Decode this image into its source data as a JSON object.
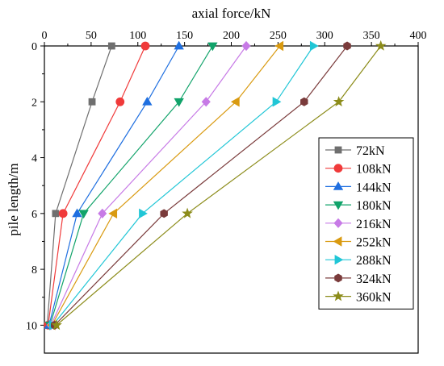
{
  "chart_data": {
    "type": "line",
    "title": "",
    "xlabel": "axial force/kN",
    "ylabel": "pile length/m",
    "x_axis_position": "top",
    "y_inverted": true,
    "xlim": [
      0,
      400
    ],
    "ylim": [
      0,
      11
    ],
    "xticks": [
      0,
      50,
      100,
      150,
      200,
      250,
      300,
      350,
      400
    ],
    "yticks": [
      0,
      2,
      4,
      6,
      8,
      10
    ],
    "grid": false,
    "legend_position": "right",
    "depths": [
      0,
      2,
      6,
      10
    ],
    "series": [
      {
        "name": "72kN",
        "color": "#6f6f6f",
        "marker": "square",
        "x": [
          72,
          51,
          12,
          3
        ]
      },
      {
        "name": "108kN",
        "color": "#f03a3a",
        "marker": "circle",
        "x": [
          108,
          81,
          20,
          4
        ]
      },
      {
        "name": "144kN",
        "color": "#1f6fe0",
        "marker": "triangle-up",
        "x": [
          144,
          110,
          35,
          5
        ]
      },
      {
        "name": "180kN",
        "color": "#11a36a",
        "marker": "triangle-down",
        "x": [
          180,
          144,
          42,
          6
        ]
      },
      {
        "name": "216kN",
        "color": "#c77ae6",
        "marker": "diamond",
        "x": [
          216,
          173,
          62,
          7
        ]
      },
      {
        "name": "252kN",
        "color": "#d99a10",
        "marker": "triangle-left",
        "x": [
          252,
          205,
          74,
          8
        ]
      },
      {
        "name": "288kN",
        "color": "#20c6d6",
        "marker": "triangle-right",
        "x": [
          288,
          248,
          105,
          9
        ]
      },
      {
        "name": "324kN",
        "color": "#7a3b3b",
        "marker": "hexagon",
        "x": [
          324,
          278,
          128,
          11
        ]
      },
      {
        "name": "360kN",
        "color": "#8c8c1a",
        "marker": "star",
        "x": [
          360,
          315,
          153,
          13
        ]
      }
    ]
  }
}
